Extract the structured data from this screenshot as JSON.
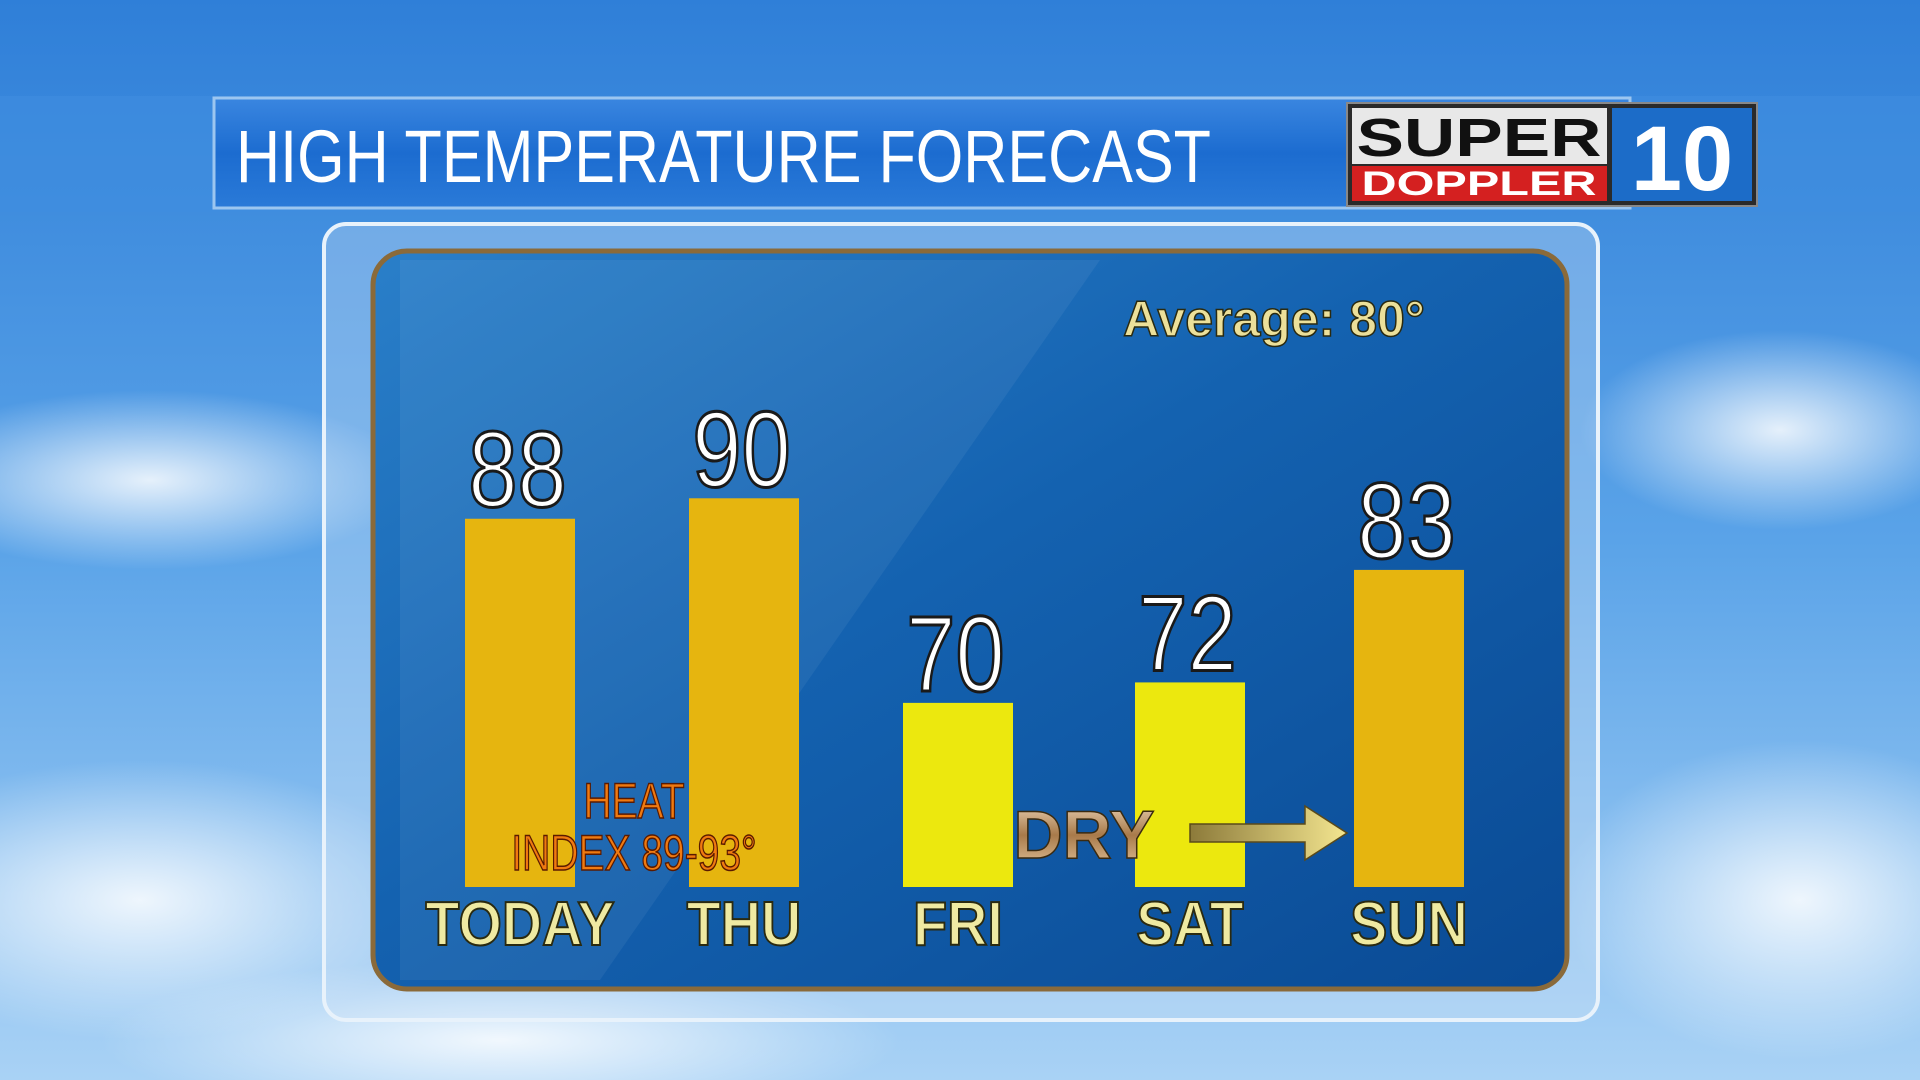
{
  "chart_data": {
    "type": "bar",
    "title": "HIGH TEMPERATURE FORECAST",
    "logo": {
      "top": "SUPER",
      "bottom": "DOPPLER",
      "number": "10"
    },
    "categories": [
      "TODAY",
      "THU",
      "FRI",
      "SAT",
      "SUN"
    ],
    "values": [
      88,
      90,
      70,
      72,
      83
    ],
    "colors": [
      "#e6b50f",
      "#e6b50f",
      "#ece80e",
      "#ece80e",
      "#e6b50f"
    ],
    "ylim": [
      52,
      100
    ],
    "average": "Average: 80°",
    "heat_index": [
      "HEAT",
      "INDEX 89-93°"
    ],
    "dry": "DRY"
  }
}
